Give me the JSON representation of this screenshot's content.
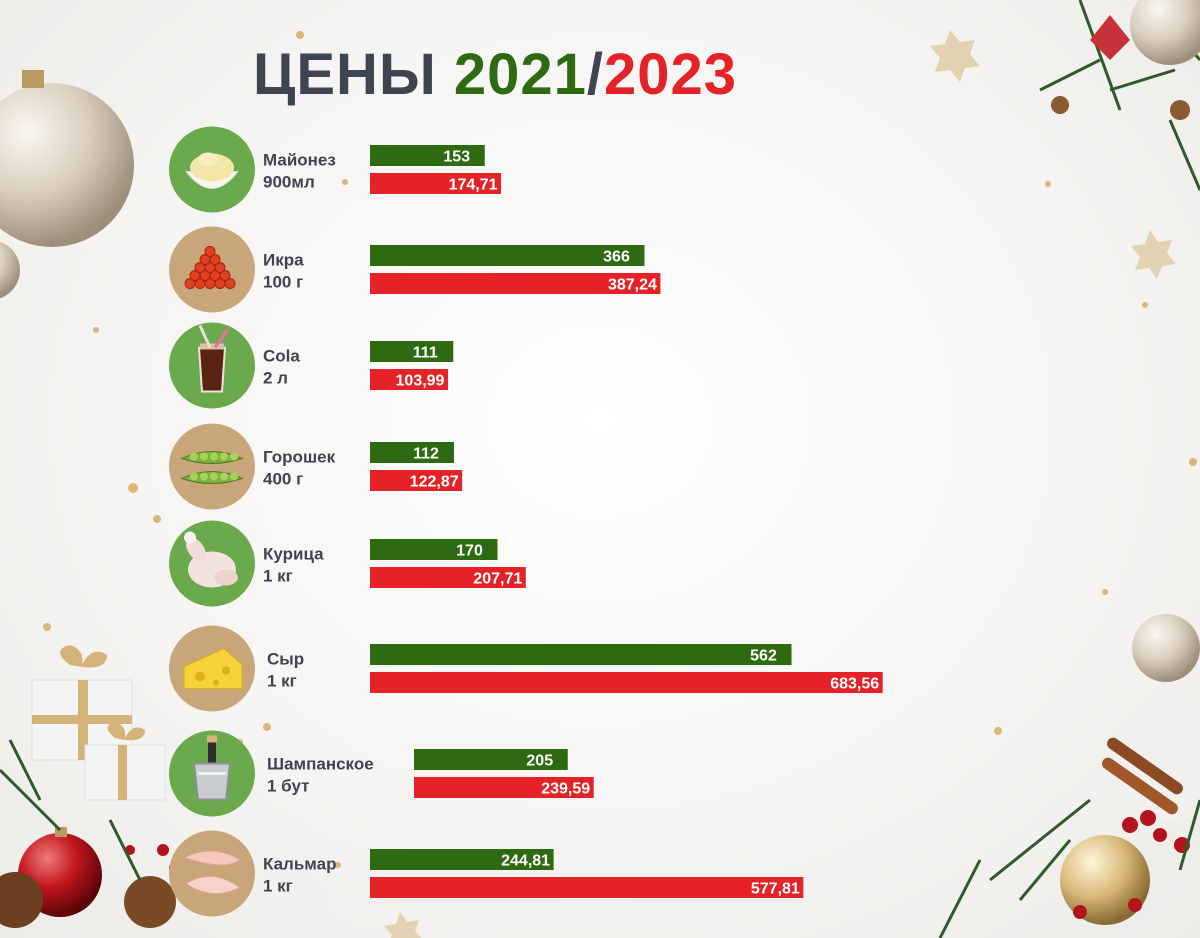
{
  "title": {
    "word": "ЦЕНЫ ",
    "year_a": "2021",
    "separator": "/",
    "year_b": "2023"
  },
  "colors": {
    "series_2021": "#2e6a12",
    "series_2023": "#e42227",
    "icon_green": "#6aaa4c",
    "icon_wood": "#c9a57a",
    "label_text": "#3e4550"
  },
  "chart_data": {
    "type": "bar",
    "orientation": "horizontal",
    "categories": [
      "Майонез 900мл",
      "Икра 100 г",
      "Cola 2 л",
      "Горошек 400 г",
      "Курица 1 кг",
      "Сыр 1 кг",
      "Шампанское 1 бут",
      "Кальмар 1 кг"
    ],
    "category_lines": [
      [
        "Майонез",
        "900мл"
      ],
      [
        "Икра",
        "100 г"
      ],
      [
        "Cola",
        " 2 л"
      ],
      [
        "Горошек",
        "400 г"
      ],
      [
        "Курица",
        "1 кг"
      ],
      [
        "Сыр",
        "1 кг"
      ],
      [
        "Шампанское",
        "1 бут"
      ],
      [
        "Кальмар",
        "1 кг"
      ]
    ],
    "icons": [
      "mayonnaise-bowl-icon",
      "red-caviar-icon",
      "cola-glass-icon",
      "green-peas-icon",
      "chicken-icon",
      "cheese-icon",
      "champagne-bucket-icon",
      "squid-icon"
    ],
    "icon_bg": [
      "green",
      "wood",
      "green",
      "wood",
      "green",
      "wood",
      "green",
      "wood"
    ],
    "series": [
      {
        "name": "2021",
        "values": [
          153,
          366,
          111,
          112,
          170,
          562,
          205,
          244.81
        ],
        "value_labels": [
          "153",
          "366",
          "111",
          "112",
          "170",
          "562",
          "205",
          "244,81"
        ]
      },
      {
        "name": "2023",
        "values": [
          174.71,
          387.24,
          103.99,
          122.87,
          207.71,
          683.56,
          239.59,
          577.81
        ],
        "value_labels": [
          "174,71",
          "387,24",
          "103,99",
          "122,87",
          "207,71",
          "683,56",
          "239,59",
          "577,81"
        ]
      }
    ],
    "legend": "none",
    "grid": false
  }
}
